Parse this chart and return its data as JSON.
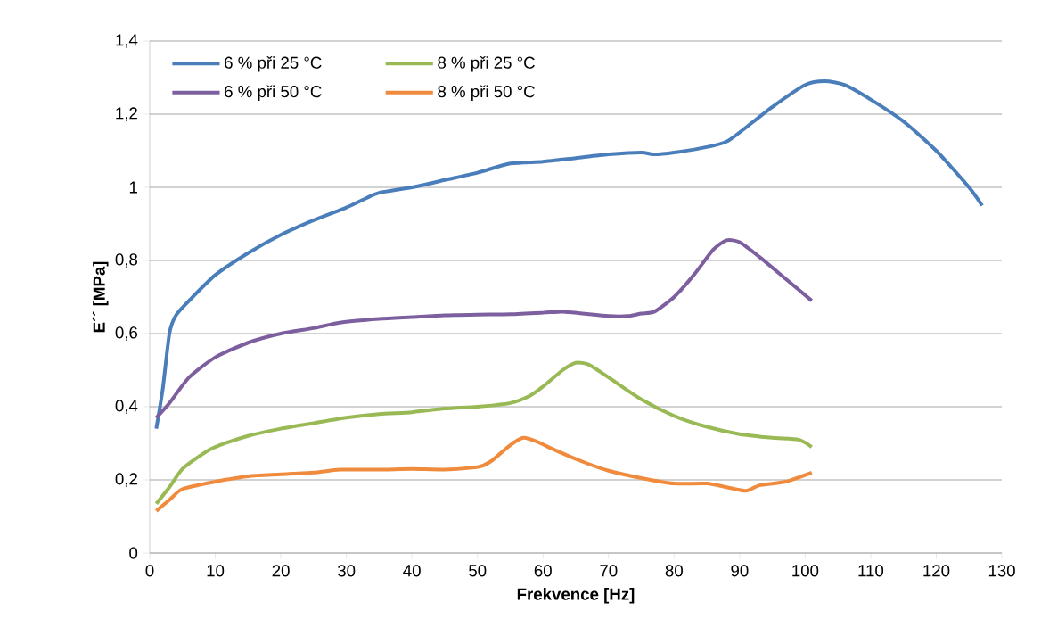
{
  "chart_data": {
    "type": "line",
    "xlabel": "Frekvence [Hz]",
    "ylabel": "E´´ [MPa]",
    "xlim": [
      0,
      130
    ],
    "xticks": [
      0,
      10,
      20,
      30,
      40,
      50,
      60,
      70,
      80,
      90,
      100,
      110,
      120,
      130
    ],
    "ylim": [
      0,
      1.4
    ],
    "yticks": [
      0,
      {
        "value": 0.2,
        "label": "0,2"
      },
      {
        "value": 0.4,
        "label": "0,4"
      },
      {
        "value": 0.6,
        "label": "0,6"
      },
      {
        "value": 0.8,
        "label": "0,8"
      },
      1,
      {
        "value": 1.2,
        "label": "1,2"
      },
      {
        "value": 1.4,
        "label": "1,4"
      }
    ],
    "grid": "y",
    "legend": "top left",
    "marker": "none",
    "line_style": "solid",
    "series": [
      {
        "name": "6 % při 25 °C",
        "color": "#4a7ebb",
        "x": [
          1,
          2,
          3,
          4,
          6,
          10,
          15,
          20,
          25,
          30,
          33,
          35,
          40,
          45,
          50,
          55,
          60,
          65,
          70,
          75,
          77,
          80,
          85,
          88,
          90,
          95,
          100,
          103,
          106,
          110,
          115,
          120,
          125,
          127
        ],
        "values": [
          0.34,
          0.45,
          0.6,
          0.65,
          0.69,
          0.76,
          0.82,
          0.87,
          0.91,
          0.945,
          0.97,
          0.985,
          1.0,
          1.02,
          1.04,
          1.065,
          1.07,
          1.08,
          1.09,
          1.095,
          1.09,
          1.095,
          1.11,
          1.125,
          1.15,
          1.22,
          1.28,
          1.29,
          1.28,
          1.24,
          1.18,
          1.1,
          1.0,
          0.95
        ]
      },
      {
        "name": "8 % při 25 °C",
        "color": "#98b954",
        "x": [
          1,
          3,
          5,
          8,
          10,
          15,
          20,
          25,
          30,
          35,
          40,
          45,
          50,
          55,
          58,
          60,
          63,
          65,
          67,
          70,
          75,
          80,
          85,
          90,
          95,
          99,
          101
        ],
        "values": [
          0.135,
          0.18,
          0.23,
          0.27,
          0.29,
          0.32,
          0.34,
          0.355,
          0.37,
          0.38,
          0.385,
          0.395,
          0.4,
          0.41,
          0.43,
          0.455,
          0.5,
          0.52,
          0.515,
          0.48,
          0.42,
          0.375,
          0.345,
          0.325,
          0.315,
          0.31,
          0.29
        ]
      },
      {
        "name": "6 % při 50 °C",
        "color": "#7d5fa0",
        "x": [
          1,
          3,
          6,
          10,
          15,
          20,
          25,
          29,
          35,
          40,
          45,
          50,
          55,
          60,
          63,
          66,
          70,
          73,
          75,
          77,
          80,
          83,
          86,
          88,
          90,
          93,
          97,
          101
        ],
        "values": [
          0.37,
          0.41,
          0.48,
          0.535,
          0.575,
          0.6,
          0.615,
          0.63,
          0.64,
          0.645,
          0.65,
          0.652,
          0.653,
          0.657,
          0.66,
          0.655,
          0.648,
          0.648,
          0.655,
          0.66,
          0.7,
          0.76,
          0.83,
          0.855,
          0.85,
          0.81,
          0.75,
          0.69
        ]
      },
      {
        "name": "8 % při 50 °C",
        "color": "#f08a3c",
        "x": [
          1,
          3,
          5,
          10,
          15,
          20,
          25,
          29,
          35,
          40,
          45,
          50,
          52,
          55,
          57,
          59,
          62,
          66,
          70,
          75,
          80,
          85,
          88,
          91,
          93,
          97,
          101
        ],
        "values": [
          0.115,
          0.145,
          0.175,
          0.195,
          0.21,
          0.215,
          0.22,
          0.228,
          0.228,
          0.23,
          0.228,
          0.235,
          0.25,
          0.295,
          0.315,
          0.305,
          0.28,
          0.25,
          0.225,
          0.205,
          0.19,
          0.19,
          0.18,
          0.17,
          0.185,
          0.195,
          0.22
        ]
      }
    ]
  }
}
